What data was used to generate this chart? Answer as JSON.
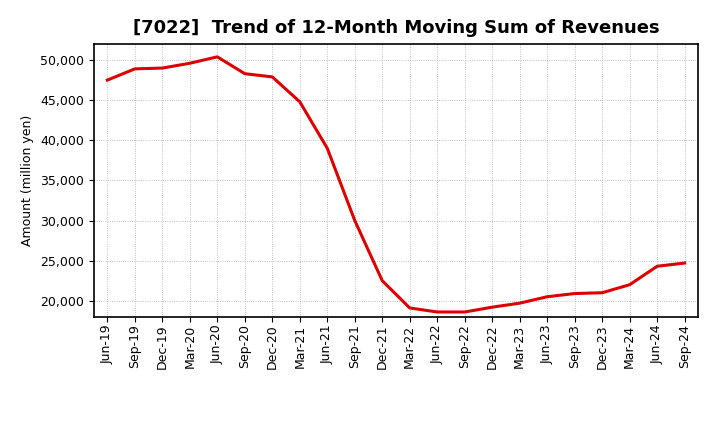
{
  "title": "[7022]  Trend of 12-Month Moving Sum of Revenues",
  "ylabel": "Amount (million yen)",
  "line_color": "#dd0000",
  "background_color": "#ffffff",
  "plot_bg_color": "#ffffff",
  "grid_color": "#999999",
  "x_labels": [
    "Jun-19",
    "Sep-19",
    "Dec-19",
    "Mar-20",
    "Jun-20",
    "Sep-20",
    "Dec-20",
    "Mar-21",
    "Jun-21",
    "Sep-21",
    "Dec-21",
    "Mar-22",
    "Jun-22",
    "Sep-22",
    "Dec-22",
    "Mar-23",
    "Jun-23",
    "Sep-23",
    "Dec-23",
    "Mar-24",
    "Jun-24",
    "Sep-24"
  ],
  "values": [
    47500,
    48900,
    49000,
    49600,
    50400,
    48300,
    47900,
    44800,
    39000,
    30000,
    22500,
    19100,
    18600,
    18600,
    19200,
    19700,
    20500,
    20900,
    21000,
    22000,
    24300,
    24700
  ],
  "ylim": [
    18000,
    52000
  ],
  "yticks": [
    20000,
    25000,
    30000,
    35000,
    40000,
    45000,
    50000
  ],
  "line_width": 2.2,
  "title_fontsize": 13,
  "tick_fontsize": 9,
  "ylabel_fontsize": 9
}
